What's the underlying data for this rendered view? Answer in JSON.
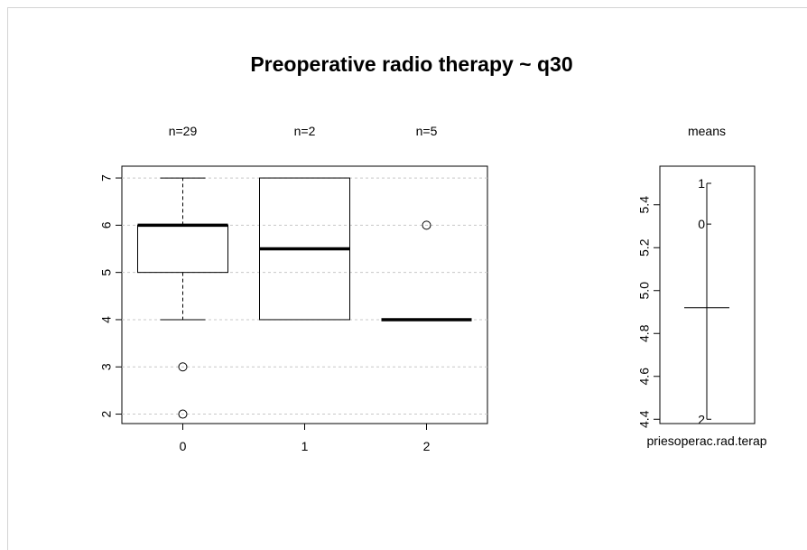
{
  "chart_data": [
    {
      "type": "box",
      "title": "Preoperative radio therapy  ~ q30",
      "xlabel": "",
      "ylabel": "",
      "categories": [
        "0",
        "1",
        "2"
      ],
      "counts": [
        "n=29",
        "n=2",
        "n=5"
      ],
      "ylim": [
        1.8,
        7.25
      ],
      "yticks": [
        "2",
        "3",
        "4",
        "5",
        "6",
        "7"
      ],
      "grid": "horizontal dashed",
      "boxes": [
        {
          "category": "0",
          "min": 4,
          "q1": 5,
          "median": 6,
          "q3": 6,
          "max": 7,
          "outliers": [
            3,
            2
          ]
        },
        {
          "category": "1",
          "min": 4,
          "q1": 4,
          "median": 5.5,
          "q3": 7,
          "max": 7,
          "outliers": []
        },
        {
          "category": "2",
          "min": 4,
          "q1": 4,
          "median": 4,
          "q3": 4,
          "max": 4,
          "outliers": [
            6
          ]
        }
      ]
    },
    {
      "type": "means",
      "title": "means",
      "xlabel": "priesoperac.rad.terap",
      "ylim": [
        4.38,
        5.58
      ],
      "yticks": [
        "4.4",
        "4.6",
        "4.8",
        "5.0",
        "5.2",
        "5.4"
      ],
      "overall_mean": 4.92,
      "group_means": [
        {
          "label": "1",
          "value": 5.5
        },
        {
          "label": "0",
          "value": 5.31
        },
        {
          "label": "2",
          "value": 4.4
        }
      ]
    }
  ]
}
